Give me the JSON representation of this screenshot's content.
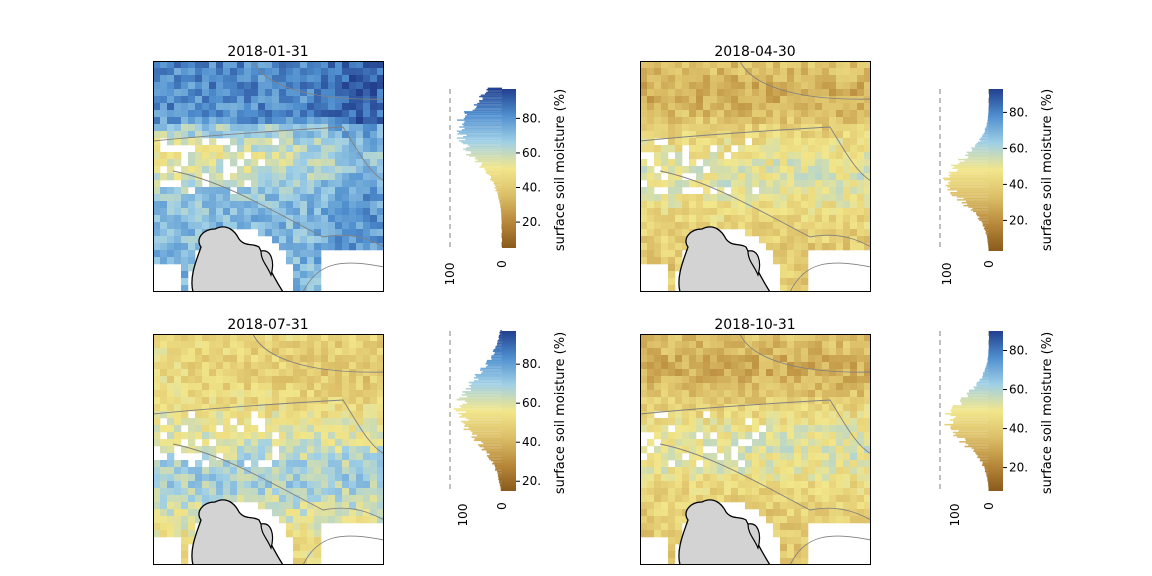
{
  "colors": {
    "colormap": [
      "#8a5a1c",
      "#b8893a",
      "#dcbf68",
      "#f2e68a",
      "#9fcfe6",
      "#4f8fcf",
      "#22408f"
    ],
    "land_gray": "#d3d3d3",
    "coastline": "#000000",
    "border": "#808080",
    "dashed_line": "#808080"
  },
  "chart_data": [
    {
      "type": "heatmap",
      "title": "2018-01-31",
      "map_style": "wet",
      "colorbar": {
        "label": "surface soil moisture (%)",
        "range": [
          5,
          97
        ],
        "ticks": [
          "20.",
          "40.",
          "60.",
          "80."
        ],
        "tick_values": [
          20,
          40,
          60,
          80
        ]
      },
      "histogram": {
        "count_axis_ticks": [
          "100",
          "0"
        ],
        "count_axis_values": [
          100,
          0
        ],
        "distribution": {
          "mean": 72,
          "sd": 17
        }
      }
    },
    {
      "type": "heatmap",
      "title": "2018-04-30",
      "map_style": "dry",
      "colorbar": {
        "label": "surface soil moisture (%)",
        "range": [
          3,
          93
        ],
        "ticks": [
          "20.",
          "40.",
          "60.",
          "80."
        ],
        "tick_values": [
          20,
          40,
          60,
          80
        ]
      },
      "histogram": {
        "count_axis_ticks": [
          "100",
          "0"
        ],
        "count_axis_values": [
          100,
          0
        ],
        "distribution": {
          "mean": 42,
          "sd": 13
        }
      }
    },
    {
      "type": "heatmap",
      "title": "2018-07-31",
      "map_style": "mid",
      "colorbar": {
        "label": "surface soil moisture (%)",
        "range": [
          15,
          97
        ],
        "ticks": [
          "20.",
          "40.",
          "60.",
          "80."
        ],
        "tick_values": [
          20,
          40,
          60,
          80
        ]
      },
      "histogram": {
        "count_axis_ticks": [
          "100",
          "0"
        ],
        "count_axis_values": [
          100,
          0
        ],
        "distribution": {
          "mean": 57,
          "sd": 16
        }
      }
    },
    {
      "type": "heatmap",
      "title": "2018-10-31",
      "map_style": "dry",
      "colorbar": {
        "label": "surface soil moisture (%)",
        "range": [
          8,
          90
        ],
        "ticks": [
          "20.",
          "40.",
          "60.",
          "80."
        ],
        "tick_values": [
          20,
          40,
          60,
          80
        ]
      },
      "histogram": {
        "count_axis_ticks": [
          "100",
          "0"
        ],
        "count_axis_values": [
          100,
          0
        ],
        "distribution": {
          "mean": 44,
          "sd": 12
        }
      }
    }
  ]
}
